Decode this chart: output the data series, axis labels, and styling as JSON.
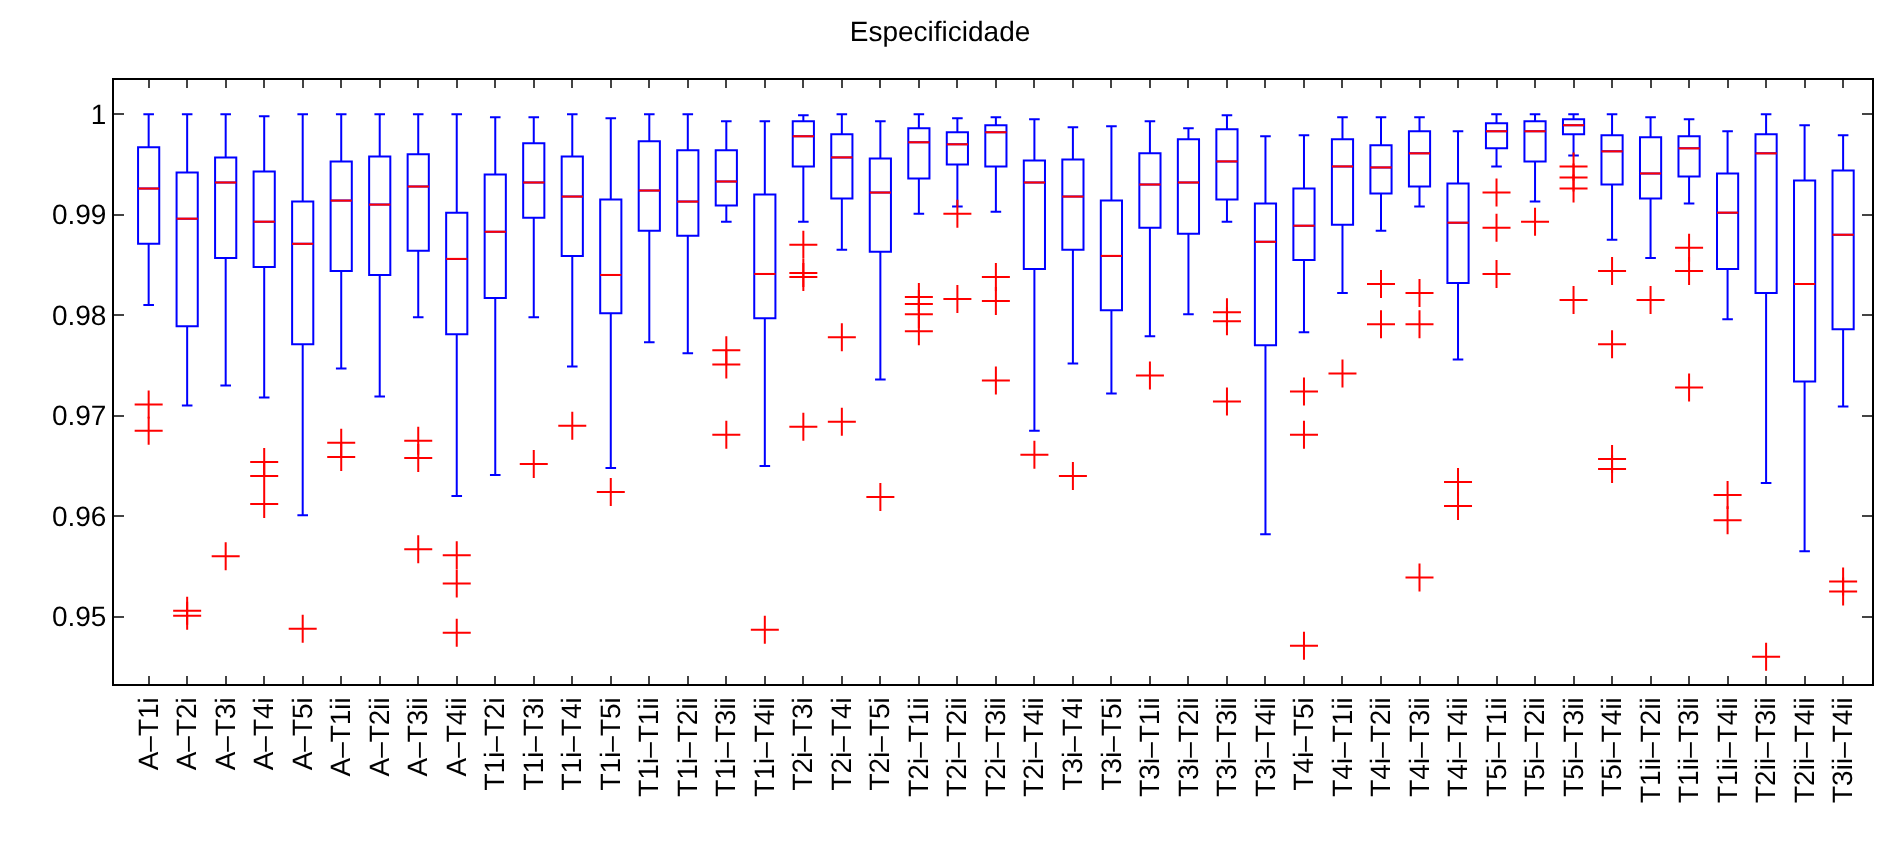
{
  "chart_data": {
    "type": "box",
    "title": "Especificidade",
    "color": "#0000ff",
    "categories": [
      "A–T1i",
      "A–T2i",
      "A–T3i",
      "A–T4i",
      "A–T5i",
      "A–T1ii",
      "A–T2ii",
      "A–T3ii",
      "A–T4ii",
      "T1i–T2i",
      "T1i–T3i",
      "T1i–T4i",
      "T1i–T5i",
      "T1i–T1ii",
      "T1i–T2ii",
      "T1i–T3ii",
      "T1i–T4ii",
      "T2i–T3i",
      "T2i–T4i",
      "T2i–T5i",
      "T2i–T1ii",
      "T2i–T2ii",
      "T2i–T3ii",
      "T2i–T4ii",
      "T3i–T4i",
      "T3i–T5i",
      "T3i–T1ii",
      "T3i–T2ii",
      "T3i–T3ii",
      "T3i–T4ii",
      "T4i–T5i",
      "T4i–T1ii",
      "T4i–T2ii",
      "T4i–T3ii",
      "T4i–T4ii",
      "T5i–T1ii",
      "T5i–T2ii",
      "T5i–T3ii",
      "T5i–T4ii",
      "T1ii–T2ii",
      "T1ii–T3ii",
      "T1ii–T4ii",
      "T2ii–T3ii",
      "T2ii–T4ii",
      "T3ii–T4ii"
    ],
    "boxes": [
      {
        "low": 0.981,
        "q1": 0.9871,
        "median": 0.9926,
        "q3": 0.9967,
        "high": 1.0,
        "outliers": [
          0.9711,
          0.9685
        ]
      },
      {
        "low": 0.971,
        "q1": 0.9789,
        "median": 0.9896,
        "q3": 0.9942,
        "high": 1.0,
        "outliers": [
          0.9506,
          0.9501
        ]
      },
      {
        "low": 0.973,
        "q1": 0.9857,
        "median": 0.9932,
        "q3": 0.9957,
        "high": 1.0,
        "outliers": [
          0.956
        ]
      },
      {
        "low": 0.9718,
        "q1": 0.9848,
        "median": 0.9893,
        "q3": 0.9943,
        "high": 0.9998,
        "outliers": [
          0.9654,
          0.964,
          0.9612
        ]
      },
      {
        "low": 0.9601,
        "q1": 0.9771,
        "median": 0.9871,
        "q3": 0.9913,
        "high": 1.0,
        "outliers": [
          0.9488
        ]
      },
      {
        "low": 0.9747,
        "q1": 0.9844,
        "median": 0.9914,
        "q3": 0.9953,
        "high": 1.0,
        "outliers": [
          0.9673,
          0.9659
        ]
      },
      {
        "low": 0.9719,
        "q1": 0.984,
        "median": 0.991,
        "q3": 0.9958,
        "high": 1.0
      },
      {
        "low": 0.9798,
        "q1": 0.9864,
        "median": 0.9928,
        "q3": 0.996,
        "high": 1.0,
        "outliers": [
          0.9675,
          0.9658,
          0.9567
        ]
      },
      {
        "low": 0.962,
        "q1": 0.9781,
        "median": 0.9856,
        "q3": 0.9902,
        "high": 1.0,
        "outliers": [
          0.9561,
          0.9533,
          0.9484
        ]
      },
      {
        "low": 0.9641,
        "q1": 0.9817,
        "median": 0.9883,
        "q3": 0.994,
        "high": 0.9997
      },
      {
        "low": 0.9798,
        "q1": 0.9897,
        "median": 0.9932,
        "q3": 0.9971,
        "high": 0.9997,
        "outliers": [
          0.9652
        ]
      },
      {
        "low": 0.9749,
        "q1": 0.9859,
        "median": 0.9918,
        "q3": 0.9958,
        "high": 1.0,
        "outliers": [
          0.969
        ]
      },
      {
        "low": 0.9648,
        "q1": 0.9802,
        "median": 0.984,
        "q3": 0.9915,
        "high": 0.9996,
        "outliers": [
          0.9624
        ]
      },
      {
        "low": 0.9773,
        "q1": 0.9884,
        "median": 0.9924,
        "q3": 0.9973,
        "high": 1.0
      },
      {
        "low": 0.9762,
        "q1": 0.9879,
        "median": 0.9913,
        "q3": 0.9964,
        "high": 1.0
      },
      {
        "low": 0.9893,
        "q1": 0.9909,
        "median": 0.9933,
        "q3": 0.9964,
        "high": 0.9993,
        "outliers": [
          0.9765,
          0.9751,
          0.9681
        ]
      },
      {
        "low": 0.965,
        "q1": 0.9797,
        "median": 0.9841,
        "q3": 0.992,
        "high": 0.9993,
        "outliers": [
          0.9487
        ]
      },
      {
        "low": 0.9893,
        "q1": 0.9948,
        "median": 0.9978,
        "q3": 0.9993,
        "high": 0.9999,
        "outliers": [
          0.987,
          0.9842,
          0.9838,
          0.9689
        ]
      },
      {
        "low": 0.9865,
        "q1": 0.9916,
        "median": 0.9957,
        "q3": 0.998,
        "high": 1.0,
        "outliers": [
          0.9778,
          0.9694
        ]
      },
      {
        "low": 0.9736,
        "q1": 0.9863,
        "median": 0.9922,
        "q3": 0.9956,
        "high": 0.9993,
        "outliers": [
          0.9619
        ]
      },
      {
        "low": 0.9901,
        "q1": 0.9936,
        "median": 0.9972,
        "q3": 0.9986,
        "high": 1.0,
        "outliers": [
          0.9818,
          0.9811,
          0.9801,
          0.9784
        ]
      },
      {
        "low": 0.9908,
        "q1": 0.995,
        "median": 0.997,
        "q3": 0.9982,
        "high": 0.9996,
        "outliers": [
          0.9901,
          0.9816
        ]
      },
      {
        "low": 0.9903,
        "q1": 0.9948,
        "median": 0.9982,
        "q3": 0.9989,
        "high": 0.9997,
        "outliers": [
          0.9838,
          0.9814,
          0.9735
        ]
      },
      {
        "low": 0.9685,
        "q1": 0.9846,
        "median": 0.9932,
        "q3": 0.9954,
        "high": 0.9995,
        "outliers": [
          0.9661
        ]
      },
      {
        "low": 0.9752,
        "q1": 0.9865,
        "median": 0.9918,
        "q3": 0.9955,
        "high": 0.9987,
        "outliers": [
          0.964
        ]
      },
      {
        "low": 0.9722,
        "q1": 0.9805,
        "median": 0.9859,
        "q3": 0.9914,
        "high": 0.9988
      },
      {
        "low": 0.9779,
        "q1": 0.9887,
        "median": 0.993,
        "q3": 0.9961,
        "high": 0.9993,
        "outliers": [
          0.974
        ]
      },
      {
        "low": 0.9801,
        "q1": 0.9881,
        "median": 0.9932,
        "q3": 0.9975,
        "high": 0.9986
      },
      {
        "low": 0.9893,
        "q1": 0.9915,
        "median": 0.9953,
        "q3": 0.9985,
        "high": 0.9999,
        "outliers": [
          0.9803,
          0.9794,
          0.9714
        ]
      },
      {
        "low": 0.9582,
        "q1": 0.977,
        "median": 0.9873,
        "q3": 0.9911,
        "high": 0.9978
      },
      {
        "low": 0.9783,
        "q1": 0.9855,
        "median": 0.9889,
        "q3": 0.9926,
        "high": 0.9979,
        "outliers": [
          0.9724,
          0.9681,
          0.9471
        ]
      },
      {
        "low": 0.9822,
        "q1": 0.989,
        "median": 0.9948,
        "q3": 0.9975,
        "high": 0.9997,
        "outliers": [
          0.9742
        ]
      },
      {
        "low": 0.9884,
        "q1": 0.9921,
        "median": 0.9947,
        "q3": 0.9969,
        "high": 0.9997,
        "outliers": [
          0.9831,
          0.9791
        ]
      },
      {
        "low": 0.9908,
        "q1": 0.9928,
        "median": 0.9961,
        "q3": 0.9983,
        "high": 0.9997,
        "outliers": [
          0.9822,
          0.9791,
          0.9539
        ]
      },
      {
        "low": 0.9756,
        "q1": 0.9832,
        "median": 0.9892,
        "q3": 0.9931,
        "high": 0.9983,
        "outliers": [
          0.9634,
          0.961
        ]
      },
      {
        "low": 0.9948,
        "q1": 0.9966,
        "median": 0.9983,
        "q3": 0.9991,
        "high": 1.0,
        "outliers": [
          0.9922,
          0.9887,
          0.9841
        ]
      },
      {
        "low": 0.9913,
        "q1": 0.9953,
        "median": 0.9983,
        "q3": 0.9993,
        "high": 1.0,
        "outliers": [
          0.9893
        ]
      },
      {
        "low": 0.9959,
        "q1": 0.998,
        "median": 0.9989,
        "q3": 0.9995,
        "high": 1.0,
        "outliers": [
          0.9948,
          0.9937,
          0.9926,
          0.9815
        ]
      },
      {
        "low": 0.9875,
        "q1": 0.993,
        "median": 0.9963,
        "q3": 0.9979,
        "high": 1.0,
        "outliers": [
          0.9844,
          0.9771,
          0.9657,
          0.9647
        ]
      },
      {
        "low": 0.9857,
        "q1": 0.9916,
        "median": 0.9941,
        "q3": 0.9977,
        "high": 0.9997,
        "outliers": [
          0.9815
        ]
      },
      {
        "low": 0.9911,
        "q1": 0.9938,
        "median": 0.9966,
        "q3": 0.9978,
        "high": 0.9995,
        "outliers": [
          0.9867,
          0.9844,
          0.9728
        ]
      },
      {
        "low": 0.9796,
        "q1": 0.9846,
        "median": 0.9902,
        "q3": 0.9941,
        "high": 0.9983,
        "outliers": [
          0.9621,
          0.9596
        ]
      },
      {
        "low": 0.9633,
        "q1": 0.9822,
        "median": 0.9961,
        "q3": 0.998,
        "high": 1.0,
        "outliers": [
          0.946
        ]
      },
      {
        "low": 0.9565,
        "q1": 0.9734,
        "median": 0.9831,
        "q3": 0.9934,
        "high": 0.9989
      },
      {
        "low": 0.9709,
        "q1": 0.9786,
        "median": 0.988,
        "q3": 0.9944,
        "high": 0.9979,
        "outliers": [
          0.9535,
          0.9525
        ]
      }
    ],
    "ylim": [
      0.9433,
      1.0034
    ],
    "yticks": [
      0.95,
      0.96,
      0.97,
      0.98,
      0.99,
      1
    ],
    "marker": "cross"
  }
}
